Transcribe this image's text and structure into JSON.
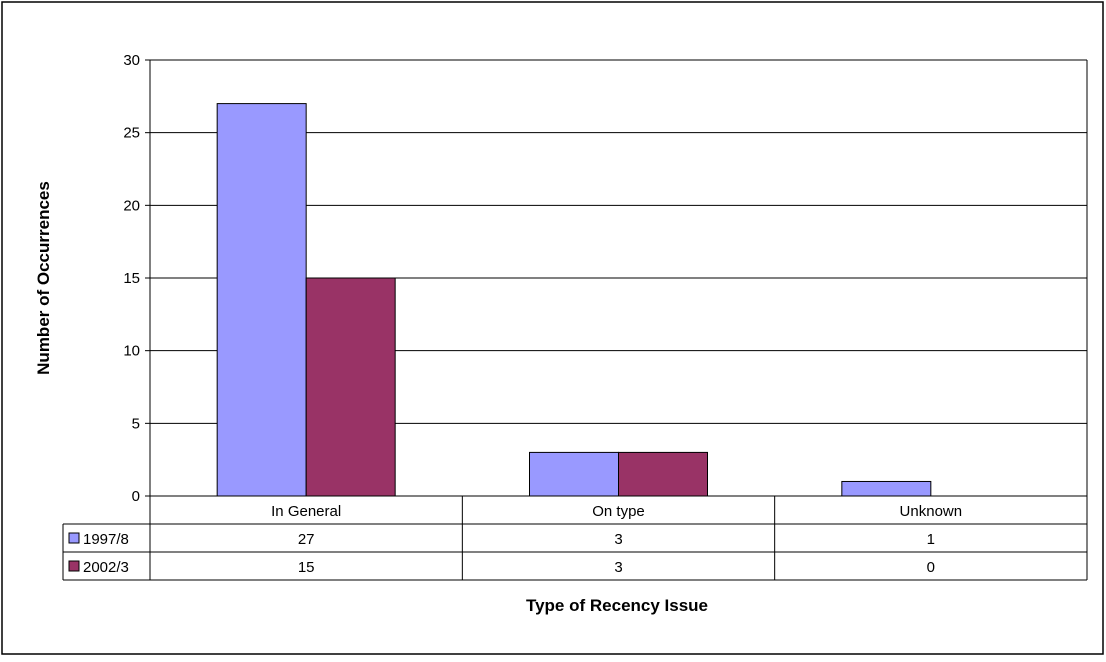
{
  "chart_data": {
    "type": "bar",
    "title": "",
    "xlabel": "Type of Recency Issue",
    "ylabel": "Number of Occurrences",
    "categories": [
      "In General",
      "On type",
      "Unknown"
    ],
    "ylim": [
      0,
      30
    ],
    "yticks": [
      0,
      5,
      10,
      15,
      20,
      25,
      30
    ],
    "grid": true,
    "legend": "data-table-left",
    "data_table": true,
    "series": [
      {
        "name": "1997/8",
        "values": [
          27,
          3,
          1
        ],
        "color": "#9999ff"
      },
      {
        "name": "2002/3",
        "values": [
          15,
          3,
          0
        ],
        "color": "#993366"
      }
    ]
  }
}
